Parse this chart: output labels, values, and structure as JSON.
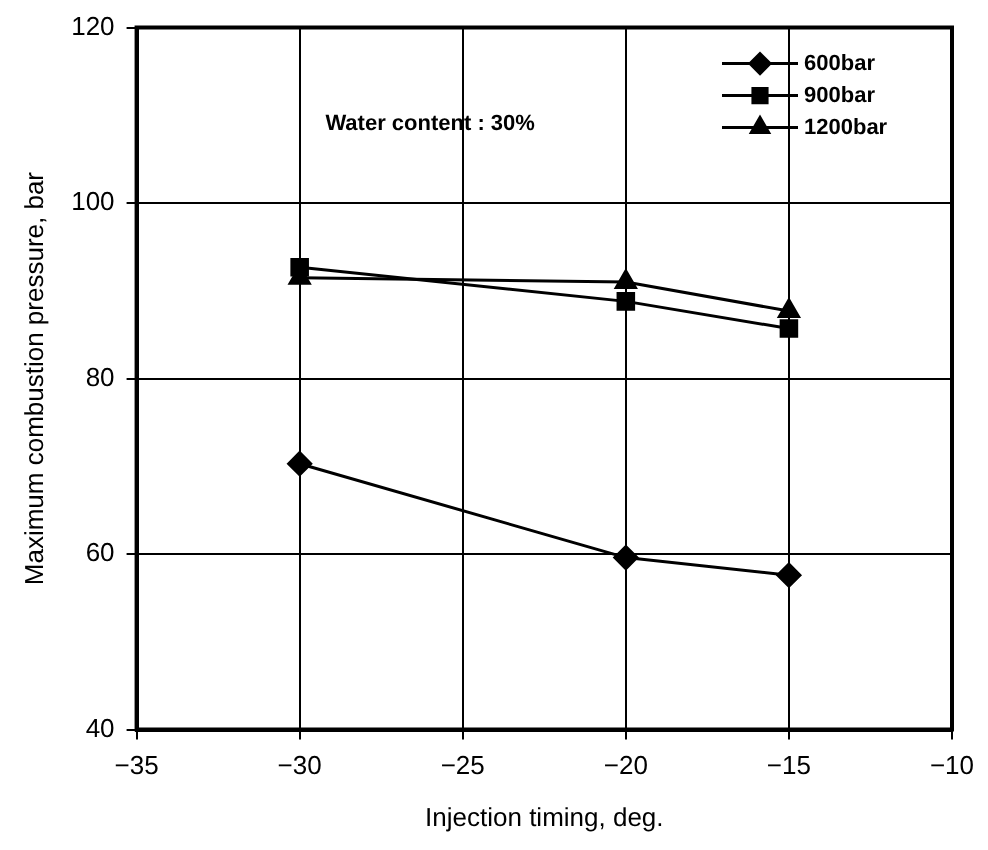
{
  "chart_data": {
    "type": "line",
    "xlabel": "Injection timing, deg.",
    "ylabel": "Maximum combustion pressure, bar",
    "annotations": [
      "Water content : 30%"
    ],
    "xlim": [
      -35,
      -10
    ],
    "xticks": [
      -35,
      -30,
      -25,
      -20,
      -15,
      -10
    ],
    "ylim": [
      40,
      120
    ],
    "yticks": [
      40,
      60,
      80,
      100,
      120
    ],
    "grid": true,
    "legend": "top right",
    "line_style": "solid",
    "series": [
      {
        "name": "600bar",
        "color": "#000000",
        "marker": "diamond",
        "x": [
          -30,
          -20,
          -15
        ],
        "values": [
          70.3,
          59.6,
          57.6
        ]
      },
      {
        "name": "900bar",
        "color": "#000000",
        "marker": "square",
        "x": [
          -30,
          -20,
          -15
        ],
        "values": [
          92.7,
          88.8,
          85.7
        ]
      },
      {
        "name": "1200bar",
        "color": "#000000",
        "marker": "triangle",
        "x": [
          -30,
          -20,
          -15
        ],
        "values": [
          91.5,
          91.0,
          87.7
        ]
      }
    ]
  }
}
